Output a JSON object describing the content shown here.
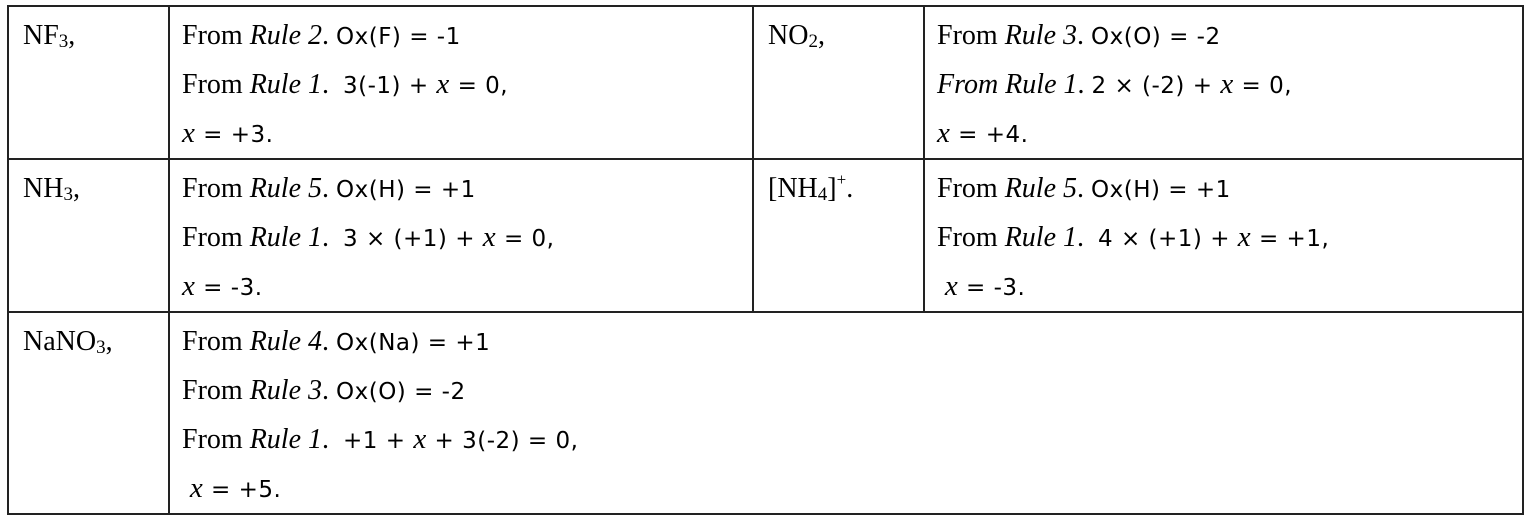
{
  "rows": [
    {
      "cells": [
        {
          "formula": [
            {
              "t": "NF"
            },
            {
              "t": "3",
              "k": "sub"
            },
            {
              "t": ","
            }
          ],
          "lines": [
            [
              {
                "t": "From "
              },
              {
                "t": "Rule 2",
                "k": "i"
              },
              {
                "t": ". "
              },
              {
                "t": "Ox(F) = -1",
                "k": "m"
              }
            ],
            [
              {
                "t": "From "
              },
              {
                "t": "Rule 1",
                "k": "i"
              },
              {
                "t": ".  "
              },
              {
                "t": "3(-1) + x = 0,",
                "k": "m"
              }
            ],
            [
              {
                "t": "x = +3.",
                "k": "m"
              }
            ]
          ]
        },
        {
          "formula": [
            {
              "t": "NO"
            },
            {
              "t": "2",
              "k": "sub"
            },
            {
              "t": ","
            }
          ],
          "lines": [
            [
              {
                "t": "From "
              },
              {
                "t": "Rule 3",
                "k": "i"
              },
              {
                "t": ". "
              },
              {
                "t": "Ox(O) = -2",
                "k": "m"
              }
            ],
            [
              {
                "t": "From Rule 1",
                "k": "i"
              },
              {
                "t": ". "
              },
              {
                "t": "2 × (-2) + x = 0,",
                "k": "m"
              }
            ],
            [
              {
                "t": "x = +4.",
                "k": "m"
              }
            ]
          ]
        }
      ]
    },
    {
      "cells": [
        {
          "formula": [
            {
              "t": "NH"
            },
            {
              "t": "3",
              "k": "sub"
            },
            {
              "t": ","
            }
          ],
          "lines": [
            [
              {
                "t": "From "
              },
              {
                "t": "Rule 5",
                "k": "i"
              },
              {
                "t": ". "
              },
              {
                "t": "Ox(H) = +1",
                "k": "m"
              }
            ],
            [
              {
                "t": "From "
              },
              {
                "t": "Rule 1",
                "k": "i"
              },
              {
                "t": ".  "
              },
              {
                "t": "3 × (+1) + x = 0,",
                "k": "m"
              }
            ],
            [
              {
                "t": "x = -3.",
                "k": "m"
              }
            ]
          ]
        },
        {
          "formula": [
            {
              "t": "[NH"
            },
            {
              "t": "4",
              "k": "sub"
            },
            {
              "t": "]"
            },
            {
              "t": "+",
              "k": "sup"
            },
            {
              "t": "."
            }
          ],
          "lines": [
            [
              {
                "t": "From "
              },
              {
                "t": "Rule 5",
                "k": "i"
              },
              {
                "t": ". "
              },
              {
                "t": "Ox(H) = +1",
                "k": "m"
              }
            ],
            [
              {
                "t": "From "
              },
              {
                "t": "Rule 1",
                "k": "i"
              },
              {
                "t": ".  "
              },
              {
                "t": "4 × (+1) + x = +1,",
                "k": "m"
              }
            ],
            [
              {
                "t": " x = -3.",
                "k": "m"
              }
            ]
          ]
        }
      ]
    },
    {
      "cells": [
        {
          "formula": [
            {
              "t": "NaNO"
            },
            {
              "t": "3",
              "k": "sub"
            },
            {
              "t": ","
            }
          ],
          "lines": [
            [
              {
                "t": "From "
              },
              {
                "t": "Rule 4",
                "k": "i"
              },
              {
                "t": ". "
              },
              {
                "t": "Ox(Na) = +1",
                "k": "m"
              }
            ],
            [
              {
                "t": "From "
              },
              {
                "t": "Rule 3",
                "k": "i"
              },
              {
                "t": ". "
              },
              {
                "t": "Ox(O) = -2",
                "k": "m"
              }
            ],
            [
              {
                "t": "From "
              },
              {
                "t": "Rule 1",
                "k": "i"
              },
              {
                "t": ".  "
              },
              {
                "t": "+1 + x + 3(-2) = 0,",
                "k": "m"
              }
            ],
            [
              {
                "t": " x = +5.",
                "k": "m"
              }
            ]
          ]
        }
      ]
    }
  ]
}
